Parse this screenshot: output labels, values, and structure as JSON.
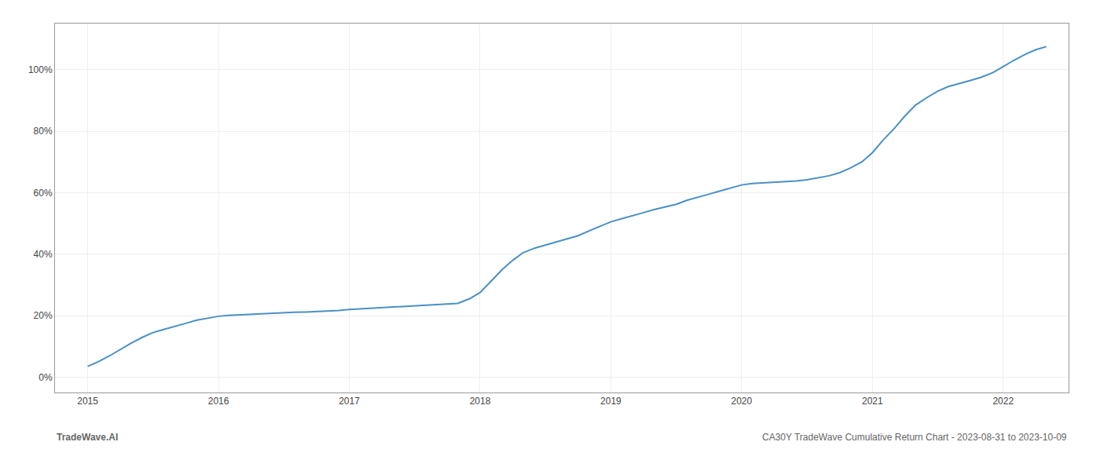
{
  "chart_data": {
    "type": "line",
    "title": "CA30Y TradeWave Cumulative Return Chart - 2023-08-31 to 2023-10-09",
    "annotations": [
      "TradeWave.AI"
    ],
    "color": "#4a90c4",
    "grid": true,
    "x": [
      2015.0,
      2015.08,
      2015.17,
      2015.25,
      2015.33,
      2015.42,
      2015.5,
      2015.58,
      2015.67,
      2015.75,
      2015.83,
      2015.92,
      2016.0,
      2016.08,
      2016.17,
      2016.25,
      2016.33,
      2016.42,
      2016.5,
      2016.58,
      2016.67,
      2016.75,
      2016.83,
      2016.92,
      2017.0,
      2017.08,
      2017.17,
      2017.25,
      2017.33,
      2017.42,
      2017.5,
      2017.58,
      2017.67,
      2017.75,
      2017.83,
      2017.92,
      2018.0,
      2018.08,
      2018.17,
      2018.25,
      2018.33,
      2018.42,
      2018.5,
      2018.58,
      2018.67,
      2018.75,
      2018.83,
      2018.92,
      2019.0,
      2019.08,
      2019.17,
      2019.25,
      2019.33,
      2019.42,
      2019.5,
      2019.58,
      2019.67,
      2019.75,
      2019.83,
      2019.92,
      2020.0,
      2020.08,
      2020.17,
      2020.25,
      2020.33,
      2020.42,
      2020.5,
      2020.58,
      2020.67,
      2020.75,
      2020.83,
      2020.92,
      2021.0,
      2021.08,
      2021.17,
      2021.25,
      2021.33,
      2021.42,
      2021.5,
      2021.58,
      2021.67,
      2021.75,
      2021.83,
      2021.92,
      2022.0,
      2022.08,
      2022.17,
      2022.25,
      2022.33
    ],
    "values": [
      3.5,
      5.0,
      7.0,
      9.0,
      11.0,
      13.0,
      14.5,
      15.5,
      16.5,
      17.5,
      18.5,
      19.2,
      19.8,
      20.1,
      20.3,
      20.5,
      20.7,
      20.9,
      21.0,
      21.1,
      21.2,
      21.3,
      21.5,
      21.7,
      22.0,
      22.2,
      22.4,
      22.6,
      22.8,
      23.0,
      23.2,
      23.4,
      23.6,
      23.8,
      24.0,
      25.5,
      27.5,
      31.0,
      35.0,
      38.0,
      40.5,
      42.0,
      43.0,
      44.0,
      45.0,
      46.0,
      47.5,
      49.0,
      50.5,
      51.5,
      52.5,
      53.5,
      54.5,
      55.5,
      56.2,
      57.5,
      58.5,
      59.5,
      60.5,
      61.5,
      62.5,
      63.0,
      63.2,
      63.4,
      63.5,
      63.8,
      64.2,
      64.8,
      65.5,
      66.5,
      68.0,
      70.0,
      73.0,
      77.0,
      81.0,
      85.0,
      88.5,
      91.0,
      93.0,
      94.5,
      95.5,
      96.5,
      97.5,
      99.0,
      101.0,
      103.0,
      105.0,
      106.5,
      107.5
    ],
    "xlim": [
      2014.75,
      2022.5
    ],
    "xticks": [
      2015,
      2016,
      2017,
      2018,
      2019,
      2020,
      2021,
      2022
    ],
    "ylim": [
      -5,
      115
    ],
    "yticks": [
      {
        "value": 0,
        "label": "0%"
      },
      {
        "value": 20,
        "label": "20%"
      },
      {
        "value": 40,
        "label": "40%"
      },
      {
        "value": 60,
        "label": "60%"
      },
      {
        "value": 80,
        "label": "80%"
      },
      {
        "value": 100,
        "label": "100%"
      }
    ]
  }
}
